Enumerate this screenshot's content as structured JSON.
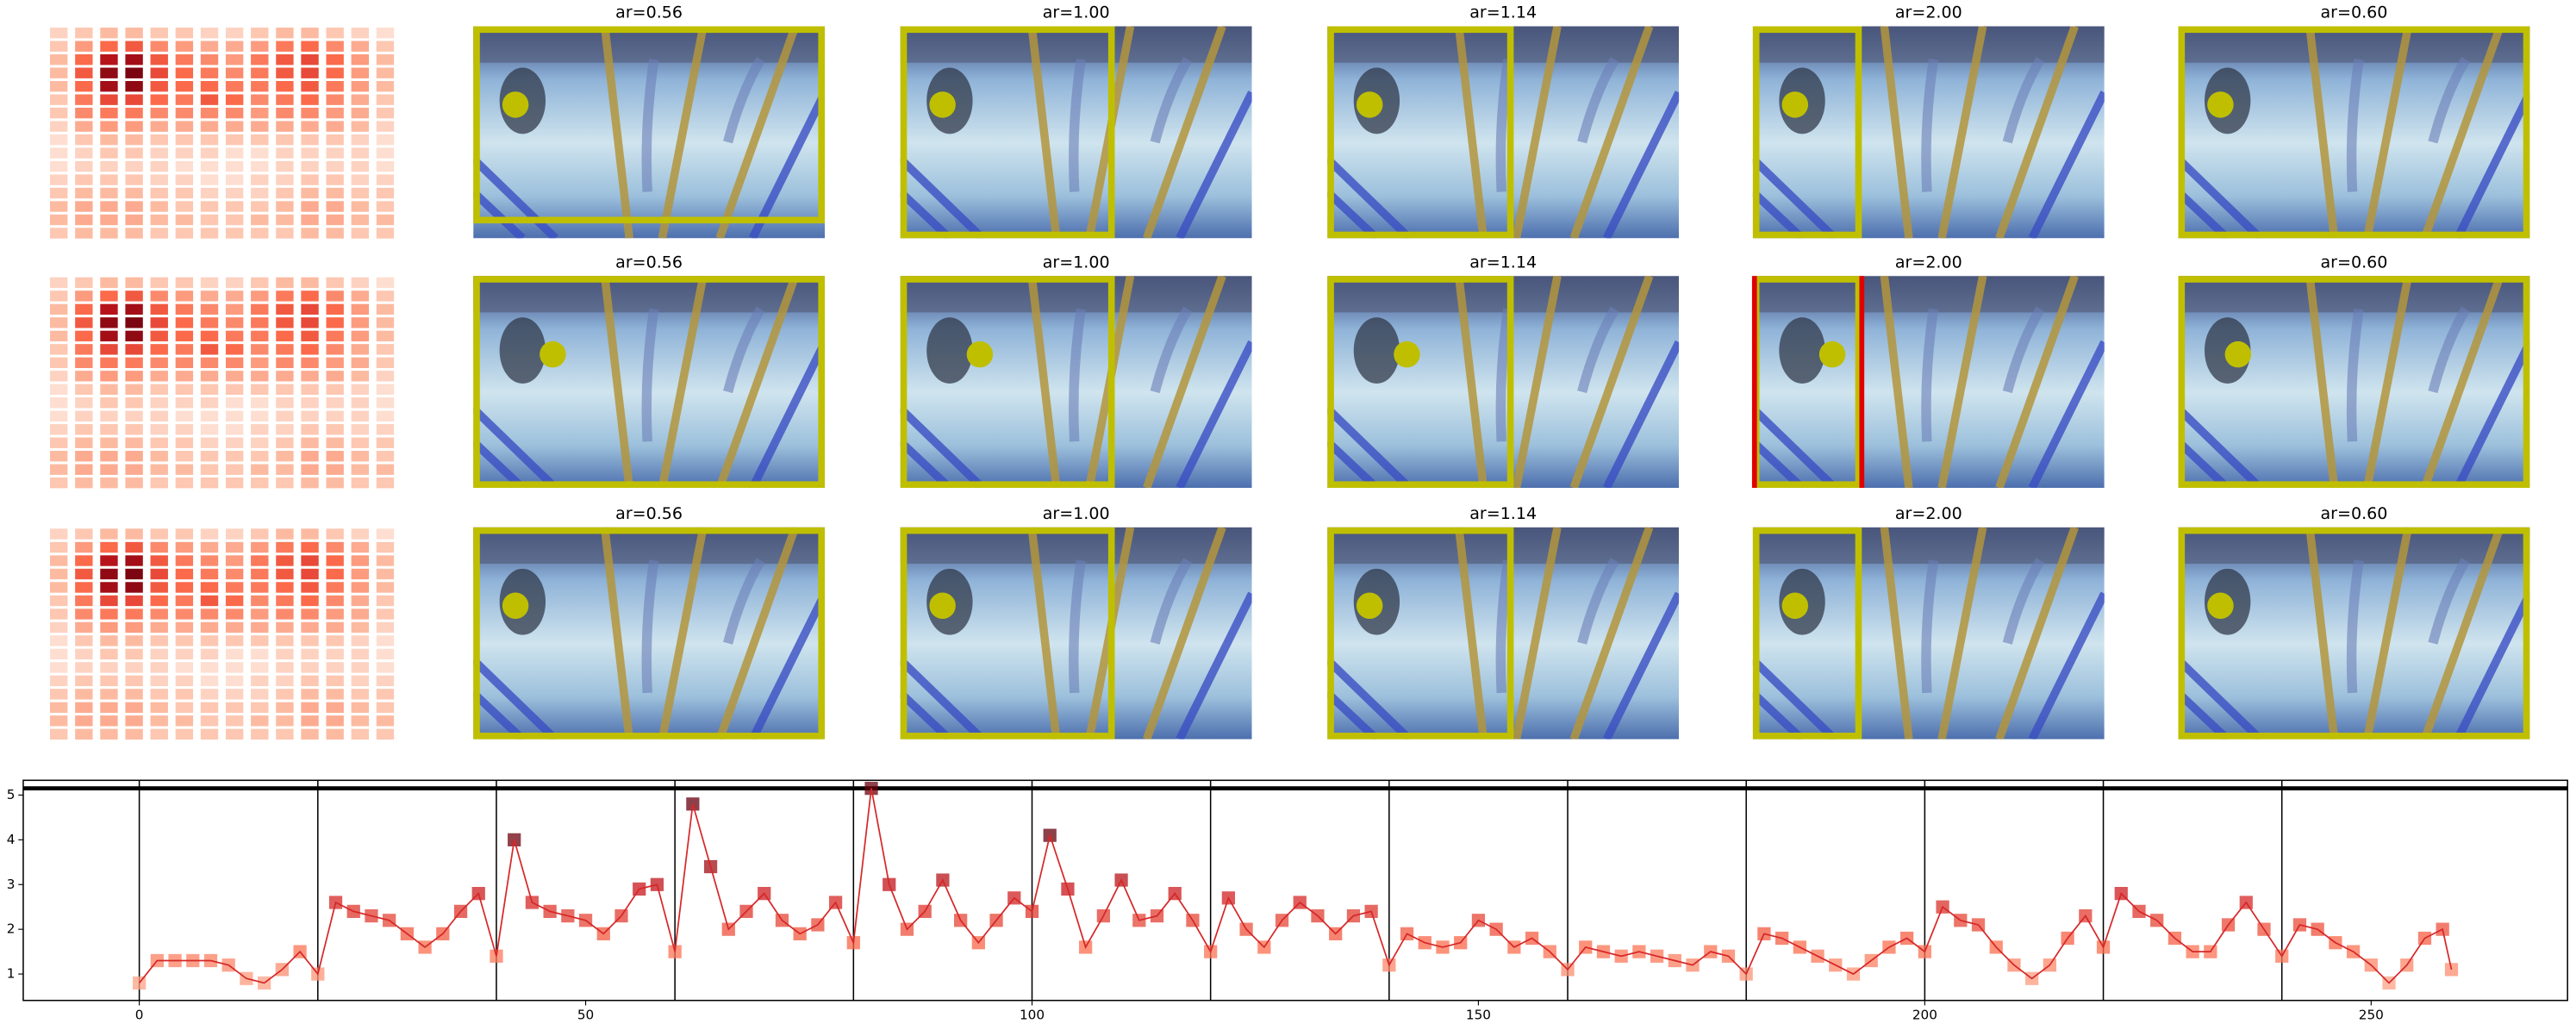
{
  "chart_data": [
    {
      "type": "heatmap",
      "colormap": "Reds",
      "values": [
        [
          0.15,
          0.2,
          0.25,
          0.25,
          0.2,
          0.2,
          0.15,
          0.15,
          0.2,
          0.25,
          0.25,
          0.2,
          0.15,
          0.1
        ],
        [
          0.2,
          0.35,
          0.5,
          0.55,
          0.4,
          0.35,
          0.3,
          0.3,
          0.35,
          0.45,
          0.5,
          0.4,
          0.3,
          0.2
        ],
        [
          0.25,
          0.5,
          0.8,
          0.85,
          0.55,
          0.45,
          0.4,
          0.35,
          0.45,
          0.55,
          0.6,
          0.5,
          0.35,
          0.25
        ],
        [
          0.25,
          0.55,
          0.9,
          0.95,
          0.6,
          0.5,
          0.45,
          0.4,
          0.45,
          0.55,
          0.6,
          0.5,
          0.35,
          0.25
        ],
        [
          0.25,
          0.5,
          0.85,
          0.9,
          0.55,
          0.5,
          0.5,
          0.45,
          0.45,
          0.5,
          0.55,
          0.45,
          0.35,
          0.25
        ],
        [
          0.2,
          0.45,
          0.6,
          0.6,
          0.5,
          0.45,
          0.55,
          0.5,
          0.4,
          0.45,
          0.5,
          0.4,
          0.3,
          0.2
        ],
        [
          0.2,
          0.4,
          0.45,
          0.45,
          0.4,
          0.4,
          0.4,
          0.4,
          0.35,
          0.4,
          0.4,
          0.35,
          0.3,
          0.2
        ],
        [
          0.15,
          0.3,
          0.35,
          0.35,
          0.3,
          0.3,
          0.3,
          0.3,
          0.3,
          0.3,
          0.3,
          0.3,
          0.25,
          0.15
        ],
        [
          0.1,
          0.2,
          0.25,
          0.25,
          0.2,
          0.2,
          0.2,
          0.2,
          0.2,
          0.2,
          0.2,
          0.2,
          0.15,
          0.1
        ],
        [
          0.1,
          0.15,
          0.2,
          0.2,
          0.15,
          0.15,
          0.15,
          0.1,
          0.1,
          0.15,
          0.15,
          0.15,
          0.15,
          0.1
        ],
        [
          0.1,
          0.15,
          0.15,
          0.15,
          0.15,
          0.1,
          0.1,
          0.1,
          0.1,
          0.15,
          0.15,
          0.15,
          0.15,
          0.1
        ],
        [
          0.15,
          0.2,
          0.2,
          0.2,
          0.15,
          0.15,
          0.1,
          0.1,
          0.15,
          0.15,
          0.2,
          0.2,
          0.15,
          0.15
        ],
        [
          0.2,
          0.25,
          0.25,
          0.25,
          0.2,
          0.2,
          0.15,
          0.15,
          0.15,
          0.2,
          0.25,
          0.25,
          0.2,
          0.2
        ],
        [
          0.25,
          0.3,
          0.3,
          0.3,
          0.25,
          0.2,
          0.2,
          0.2,
          0.2,
          0.25,
          0.3,
          0.3,
          0.25,
          0.2
        ],
        [
          0.25,
          0.3,
          0.3,
          0.3,
          0.25,
          0.25,
          0.2,
          0.2,
          0.25,
          0.25,
          0.3,
          0.3,
          0.25,
          0.25
        ],
        [
          0.2,
          0.25,
          0.25,
          0.25,
          0.2,
          0.2,
          0.2,
          0.2,
          0.2,
          0.2,
          0.25,
          0.25,
          0.2,
          0.2
        ]
      ]
    },
    {
      "type": "line",
      "color": "#d62728",
      "colormap": "Reds",
      "x": [
        0,
        2,
        4,
        6,
        8,
        10,
        12,
        14,
        16,
        18,
        20,
        22,
        24,
        26,
        28,
        30,
        32,
        34,
        36,
        38,
        40,
        42,
        44,
        46,
        48,
        50,
        52,
        54,
        56,
        58,
        60,
        62,
        64,
        66,
        68,
        70,
        72,
        74,
        76,
        78,
        80,
        82,
        84,
        86,
        88,
        90,
        92,
        94,
        96,
        98,
        100,
        102,
        104,
        106,
        108,
        110,
        112,
        114,
        116,
        118,
        120,
        122,
        124,
        126,
        128,
        130,
        132,
        134,
        136,
        138,
        140,
        142,
        144,
        146,
        148,
        150,
        152,
        154,
        156,
        158,
        160,
        162,
        164,
        166,
        168,
        170,
        172,
        174,
        176,
        178,
        180,
        182,
        184,
        186,
        188,
        190,
        192,
        194,
        196,
        198,
        200,
        202,
        204,
        206,
        208,
        210,
        212,
        214,
        216,
        218,
        220,
        222,
        224,
        226,
        228,
        230,
        232,
        234,
        236,
        238,
        240,
        242,
        244,
        246,
        248,
        250,
        252,
        254,
        256,
        258,
        259
      ],
      "values": [
        0.8,
        1.3,
        1.3,
        1.3,
        1.3,
        1.2,
        0.9,
        0.8,
        1.1,
        1.5,
        1.0,
        2.6,
        2.4,
        2.3,
        2.2,
        1.9,
        1.6,
        1.9,
        2.4,
        2.8,
        1.4,
        4.0,
        2.6,
        2.4,
        2.3,
        2.2,
        1.9,
        2.3,
        2.9,
        3.0,
        1.5,
        4.8,
        3.4,
        2.0,
        2.4,
        2.8,
        2.2,
        1.9,
        2.1,
        2.6,
        1.7,
        5.15,
        3.0,
        2.0,
        2.4,
        3.1,
        2.2,
        1.7,
        2.2,
        2.7,
        2.4,
        4.1,
        2.9,
        1.6,
        2.3,
        3.1,
        2.2,
        2.3,
        2.8,
        2.2,
        1.5,
        2.7,
        2.0,
        1.6,
        2.2,
        2.6,
        2.3,
        1.9,
        2.3,
        2.4,
        1.2,
        1.9,
        1.7,
        1.6,
        1.7,
        2.2,
        2.0,
        1.6,
        1.8,
        1.5,
        1.1,
        1.6,
        1.5,
        1.4,
        1.5,
        1.4,
        1.3,
        1.2,
        1.5,
        1.4,
        1.0,
        1.9,
        1.8,
        1.6,
        1.4,
        1.2,
        1.0,
        1.3,
        1.6,
        1.8,
        1.5,
        2.5,
        2.2,
        2.1,
        1.6,
        1.2,
        0.9,
        1.2,
        1.8,
        2.3,
        1.6,
        2.8,
        2.4,
        2.2,
        1.8,
        1.5,
        1.5,
        2.1,
        2.6,
        2.0,
        1.4,
        2.1,
        2.0,
        1.7,
        1.5,
        1.2,
        0.8,
        1.2,
        1.8,
        2.0,
        1.1
      ],
      "xlim": [
        -13,
        272
      ],
      "ylim": [
        0.41,
        5.33
      ],
      "xticks": [
        0,
        50,
        100,
        150,
        200,
        250
      ],
      "yticks": [
        1,
        2,
        3,
        4,
        5
      ],
      "vlines": [
        0,
        20,
        40,
        60,
        80,
        100,
        120,
        140,
        160,
        180,
        200,
        220,
        240
      ],
      "hline": 5.15
    }
  ],
  "panels": [
    [
      "ar=0.56",
      "ar=1.00",
      "ar=1.14",
      "ar=2.00",
      "ar=0.60"
    ],
    [
      "ar=0.56",
      "ar=1.00",
      "ar=1.14",
      "ar=2.00",
      "ar=0.60"
    ],
    [
      "ar=0.56",
      "ar=1.00",
      "ar=1.14",
      "ar=2.00",
      "ar=0.60"
    ]
  ]
}
